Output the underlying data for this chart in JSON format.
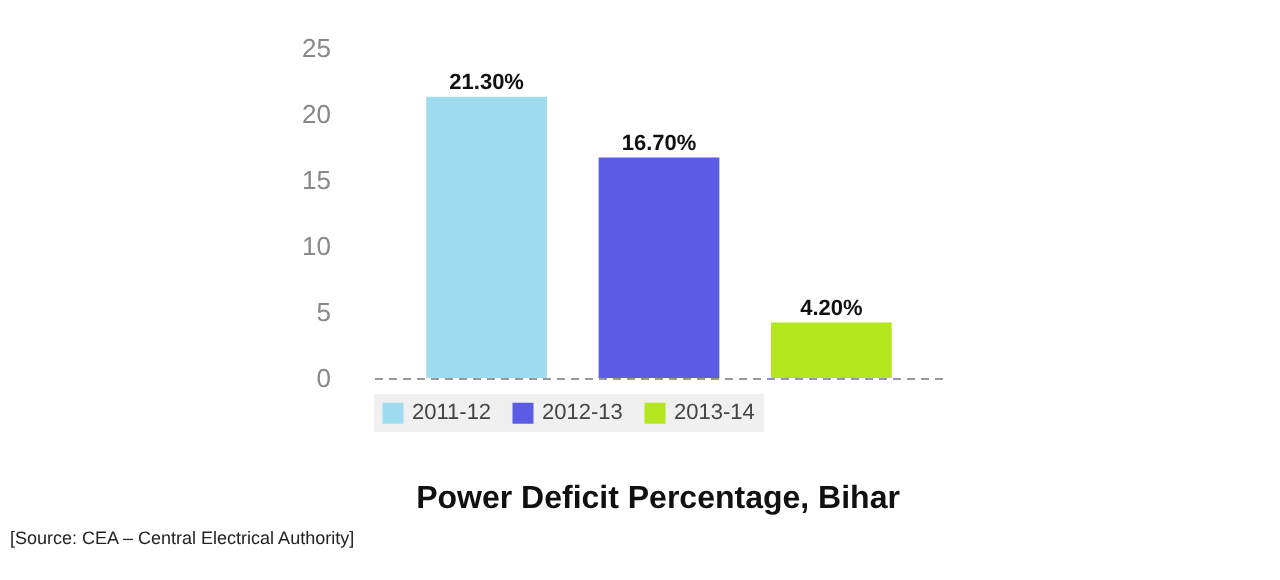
{
  "chart_data": {
    "type": "bar",
    "title": "Power Deficit Percentage, Bihar",
    "categories": [
      null
    ],
    "series": [
      {
        "name": "2011-12",
        "color": "#a0dcf0",
        "values": [
          21.3
        ],
        "value_labels": [
          "21.30%"
        ]
      },
      {
        "name": "2012-13",
        "color": "#5b5be6",
        "values": [
          16.7
        ],
        "value_labels": [
          "16.70%"
        ]
      },
      {
        "name": "2013-14",
        "color": "#b4e61e",
        "values": [
          4.2
        ],
        "value_labels": [
          "4.20%"
        ]
      }
    ],
    "ylim": [
      0,
      25
    ],
    "yticks": [
      0,
      5,
      10,
      15,
      20,
      25
    ],
    "grid": false,
    "legend": "bottom",
    "tick_labels": "y",
    "annotations": [
      "[Source: CEA – Central Electrical Authority]"
    ]
  }
}
